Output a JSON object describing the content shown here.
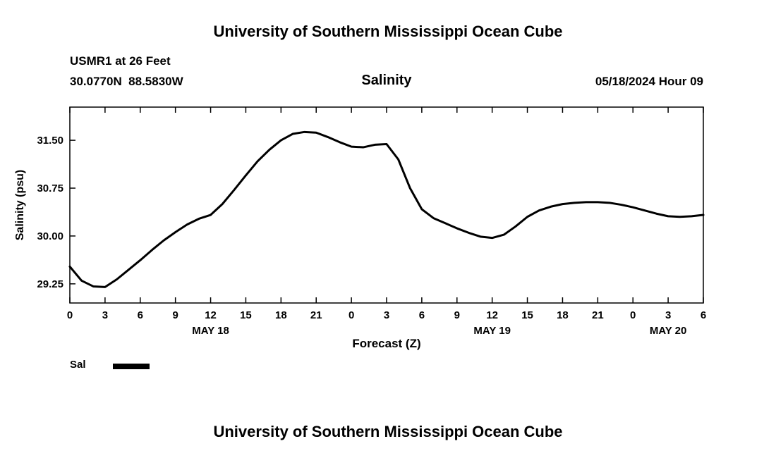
{
  "page": {
    "top_title": "University of Southern Mississippi Ocean Cube",
    "bottom_title": "University of Southern Mississippi Ocean Cube"
  },
  "header": {
    "station": "USMR1 at 26 Feet",
    "coordinates": "30.0770N  88.5830W",
    "chart_title": "Salinity",
    "datetime": "05/18/2024 Hour 09"
  },
  "legend": {
    "label": "Sal",
    "color": "#000000"
  },
  "chart_data": {
    "type": "line",
    "title": "Salinity",
    "xlabel": "Forecast (Z)",
    "ylabel": "Salinity (psu)",
    "grid": false,
    "legend_position": "below-left",
    "line_color": "#000000",
    "xlim": [
      0,
      54
    ],
    "ylim": [
      28.95,
      32.02
    ],
    "x_tick_hours": [
      0,
      3,
      6,
      9,
      12,
      15,
      18,
      21,
      24,
      27,
      30,
      33,
      36,
      39,
      42,
      45,
      48,
      51,
      54
    ],
    "x_tick_labels": [
      "0",
      "3",
      "6",
      "9",
      "12",
      "15",
      "18",
      "21",
      "0",
      "3",
      "6",
      "9",
      "12",
      "15",
      "18",
      "21",
      "0",
      "3",
      "6"
    ],
    "y_ticks": [
      29.25,
      30.0,
      30.75,
      31.5
    ],
    "y_tick_labels": [
      "29.25",
      "30.00",
      "30.75",
      "31.50"
    ],
    "day_labels": [
      {
        "hour": 12,
        "label": "MAY 18"
      },
      {
        "hour": 36,
        "label": "MAY 19"
      },
      {
        "hour": 51,
        "label": "MAY 20"
      }
    ],
    "x": [
      0,
      1,
      2,
      3,
      4,
      5,
      6,
      7,
      8,
      9,
      10,
      11,
      12,
      13,
      14,
      15,
      16,
      17,
      18,
      19,
      20,
      21,
      22,
      23,
      24,
      25,
      26,
      27,
      28,
      29,
      30,
      31,
      32,
      33,
      34,
      35,
      36,
      37,
      38,
      39,
      40,
      41,
      42,
      43,
      44,
      45,
      46,
      47,
      48,
      49,
      50,
      51,
      52,
      53,
      54
    ],
    "series": [
      {
        "name": "Sal",
        "values": [
          29.52,
          29.3,
          29.21,
          29.2,
          29.32,
          29.47,
          29.62,
          29.78,
          29.93,
          30.06,
          30.18,
          30.27,
          30.33,
          30.5,
          30.72,
          30.95,
          31.17,
          31.35,
          31.5,
          31.6,
          31.63,
          31.62,
          31.55,
          31.47,
          31.4,
          31.39,
          31.43,
          31.44,
          31.2,
          30.75,
          30.42,
          30.28,
          30.2,
          30.12,
          30.05,
          29.99,
          29.97,
          30.02,
          30.15,
          30.3,
          30.4,
          30.46,
          30.5,
          30.52,
          30.53,
          30.53,
          30.52,
          30.49,
          30.45,
          30.4,
          30.35,
          30.31,
          30.3,
          30.31,
          30.33
        ]
      }
    ]
  }
}
